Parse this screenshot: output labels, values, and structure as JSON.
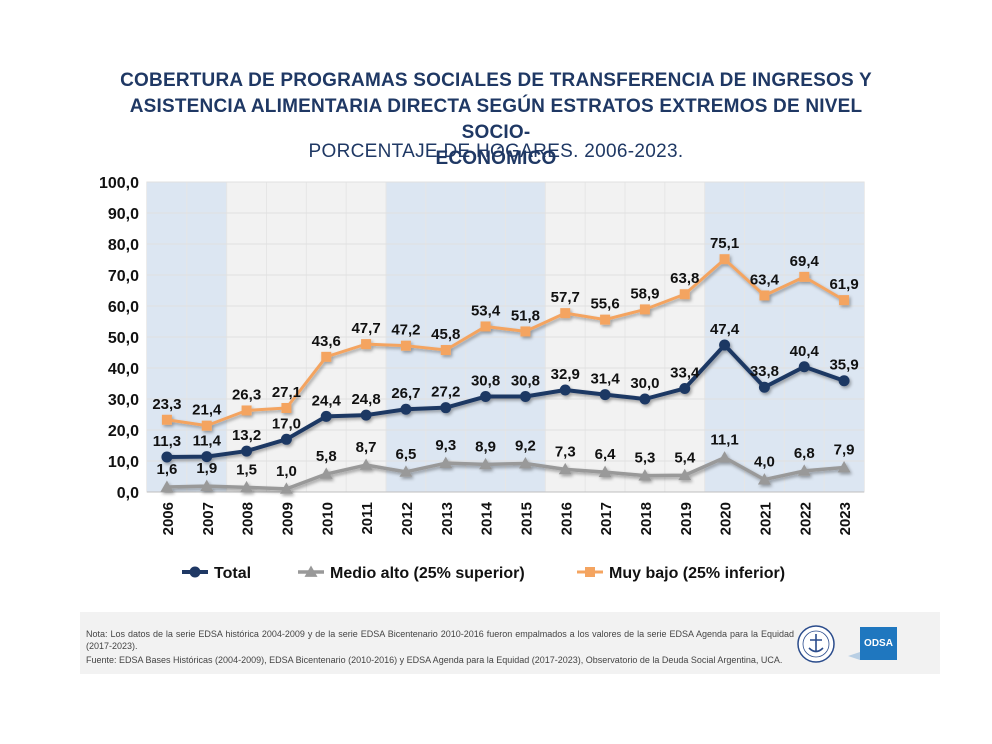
{
  "header": {
    "title_line1": "COBERTURA DE PROGRAMAS SOCIALES DE TRANSFERENCIA DE INGRESOS Y",
    "title_line2": "ASISTENCIA ALIMENTARIA DIRECTA SEGÚN ESTRATOS EXTREMOS DE NIVEL SOCIO-",
    "title_line3": "ECONÓMICO",
    "subtitle": "PORCENTAJE DE HOGARES. 2006-2023."
  },
  "chart_data": {
    "type": "line",
    "title": "COBERTURA DE PROGRAMAS SOCIALES DE TRANSFERENCIA DE INGRESOS Y ASISTENCIA ALIMENTARIA DIRECTA SEGÚN ESTRATOS EXTREMOS DE NIVEL SOCIO-ECONÓMICO",
    "subtitle": "PORCENTAJE DE HOGARES. 2006-2023.",
    "xlabel": "",
    "ylabel": "",
    "ylim": [
      0,
      100
    ],
    "yticks": [
      "0,0",
      "10,0",
      "20,0",
      "30,0",
      "40,0",
      "50,0",
      "60,0",
      "70,0",
      "80,0",
      "90,0",
      "100,0"
    ],
    "categories": [
      "2006",
      "2007",
      "2008",
      "2009",
      "2010",
      "2011",
      "2012",
      "2013",
      "2014",
      "2015",
      "2016",
      "2017",
      "2018",
      "2019",
      "2020",
      "2021",
      "2022",
      "2023"
    ],
    "shaded_periods": [
      [
        "2006",
        "2007"
      ],
      [
        "2012",
        "2015"
      ],
      [
        "2020",
        "2023"
      ]
    ],
    "legend_position": "bottom",
    "grid": true,
    "series": [
      {
        "name": "Total",
        "color": "#1f3864",
        "marker": "circle",
        "values": [
          11.3,
          11.4,
          13.2,
          17.0,
          24.4,
          24.8,
          26.7,
          27.2,
          30.8,
          30.8,
          32.9,
          31.4,
          30.0,
          33.4,
          47.4,
          33.8,
          40.4,
          35.9
        ],
        "labels": [
          "11,3",
          "11,4",
          "13,2",
          "17,0",
          "24,4",
          "24,8",
          "26,7",
          "27,2",
          "30,8",
          "30,8",
          "32,9",
          "31,4",
          "30,0",
          "33,4",
          "47,4",
          "33,8",
          "40,4",
          "35,9"
        ]
      },
      {
        "name": "Medio alto (25% superior)",
        "color": "#999999",
        "marker": "triangle",
        "values": [
          1.6,
          1.9,
          1.5,
          1.0,
          5.8,
          8.7,
          6.5,
          9.3,
          8.9,
          9.2,
          7.3,
          6.4,
          5.3,
          5.4,
          11.1,
          4.0,
          6.8,
          7.9
        ],
        "labels": [
          "1,6",
          "1,9",
          "1,5",
          "1,0",
          "5,8",
          "8,7",
          "6,5",
          "9,3",
          "8,9",
          "9,2",
          "7,3",
          "6,4",
          "5,3",
          "5,4",
          "11,1",
          "4,0",
          "6,8",
          "7,9"
        ]
      },
      {
        "name": "Muy bajo (25% inferior)",
        "color": "#f4a460",
        "marker": "square",
        "values": [
          23.3,
          21.4,
          26.3,
          27.1,
          43.6,
          47.7,
          47.2,
          45.8,
          53.4,
          51.8,
          57.7,
          55.6,
          58.9,
          63.8,
          75.1,
          63.4,
          69.4,
          61.9
        ],
        "labels": [
          "23,3",
          "21,4",
          "26,3",
          "27,1",
          "43,6",
          "47,7",
          "47,2",
          "45,8",
          "53,4",
          "51,8",
          "57,7",
          "55,6",
          "58,9",
          "63,8",
          "75,1",
          "63,4",
          "69,4",
          "61,9"
        ]
      }
    ]
  },
  "footer": {
    "note": "Nota: Los datos de la serie EDSA histórica 2004-2009 y de la serie EDSA Bicentenario 2010-2016 fueron empalmados a los valores de la serie EDSA Agenda para la Equidad (2017-2023).",
    "source": "Fuente: EDSA Bases Históricas (2004-2009), EDSA Bicentenario (2010-2016) y EDSA Agenda para la Equidad (2017-2023), Observatorio de la Deuda Social Argentina, UCA.",
    "logo_text": "ODSA"
  }
}
